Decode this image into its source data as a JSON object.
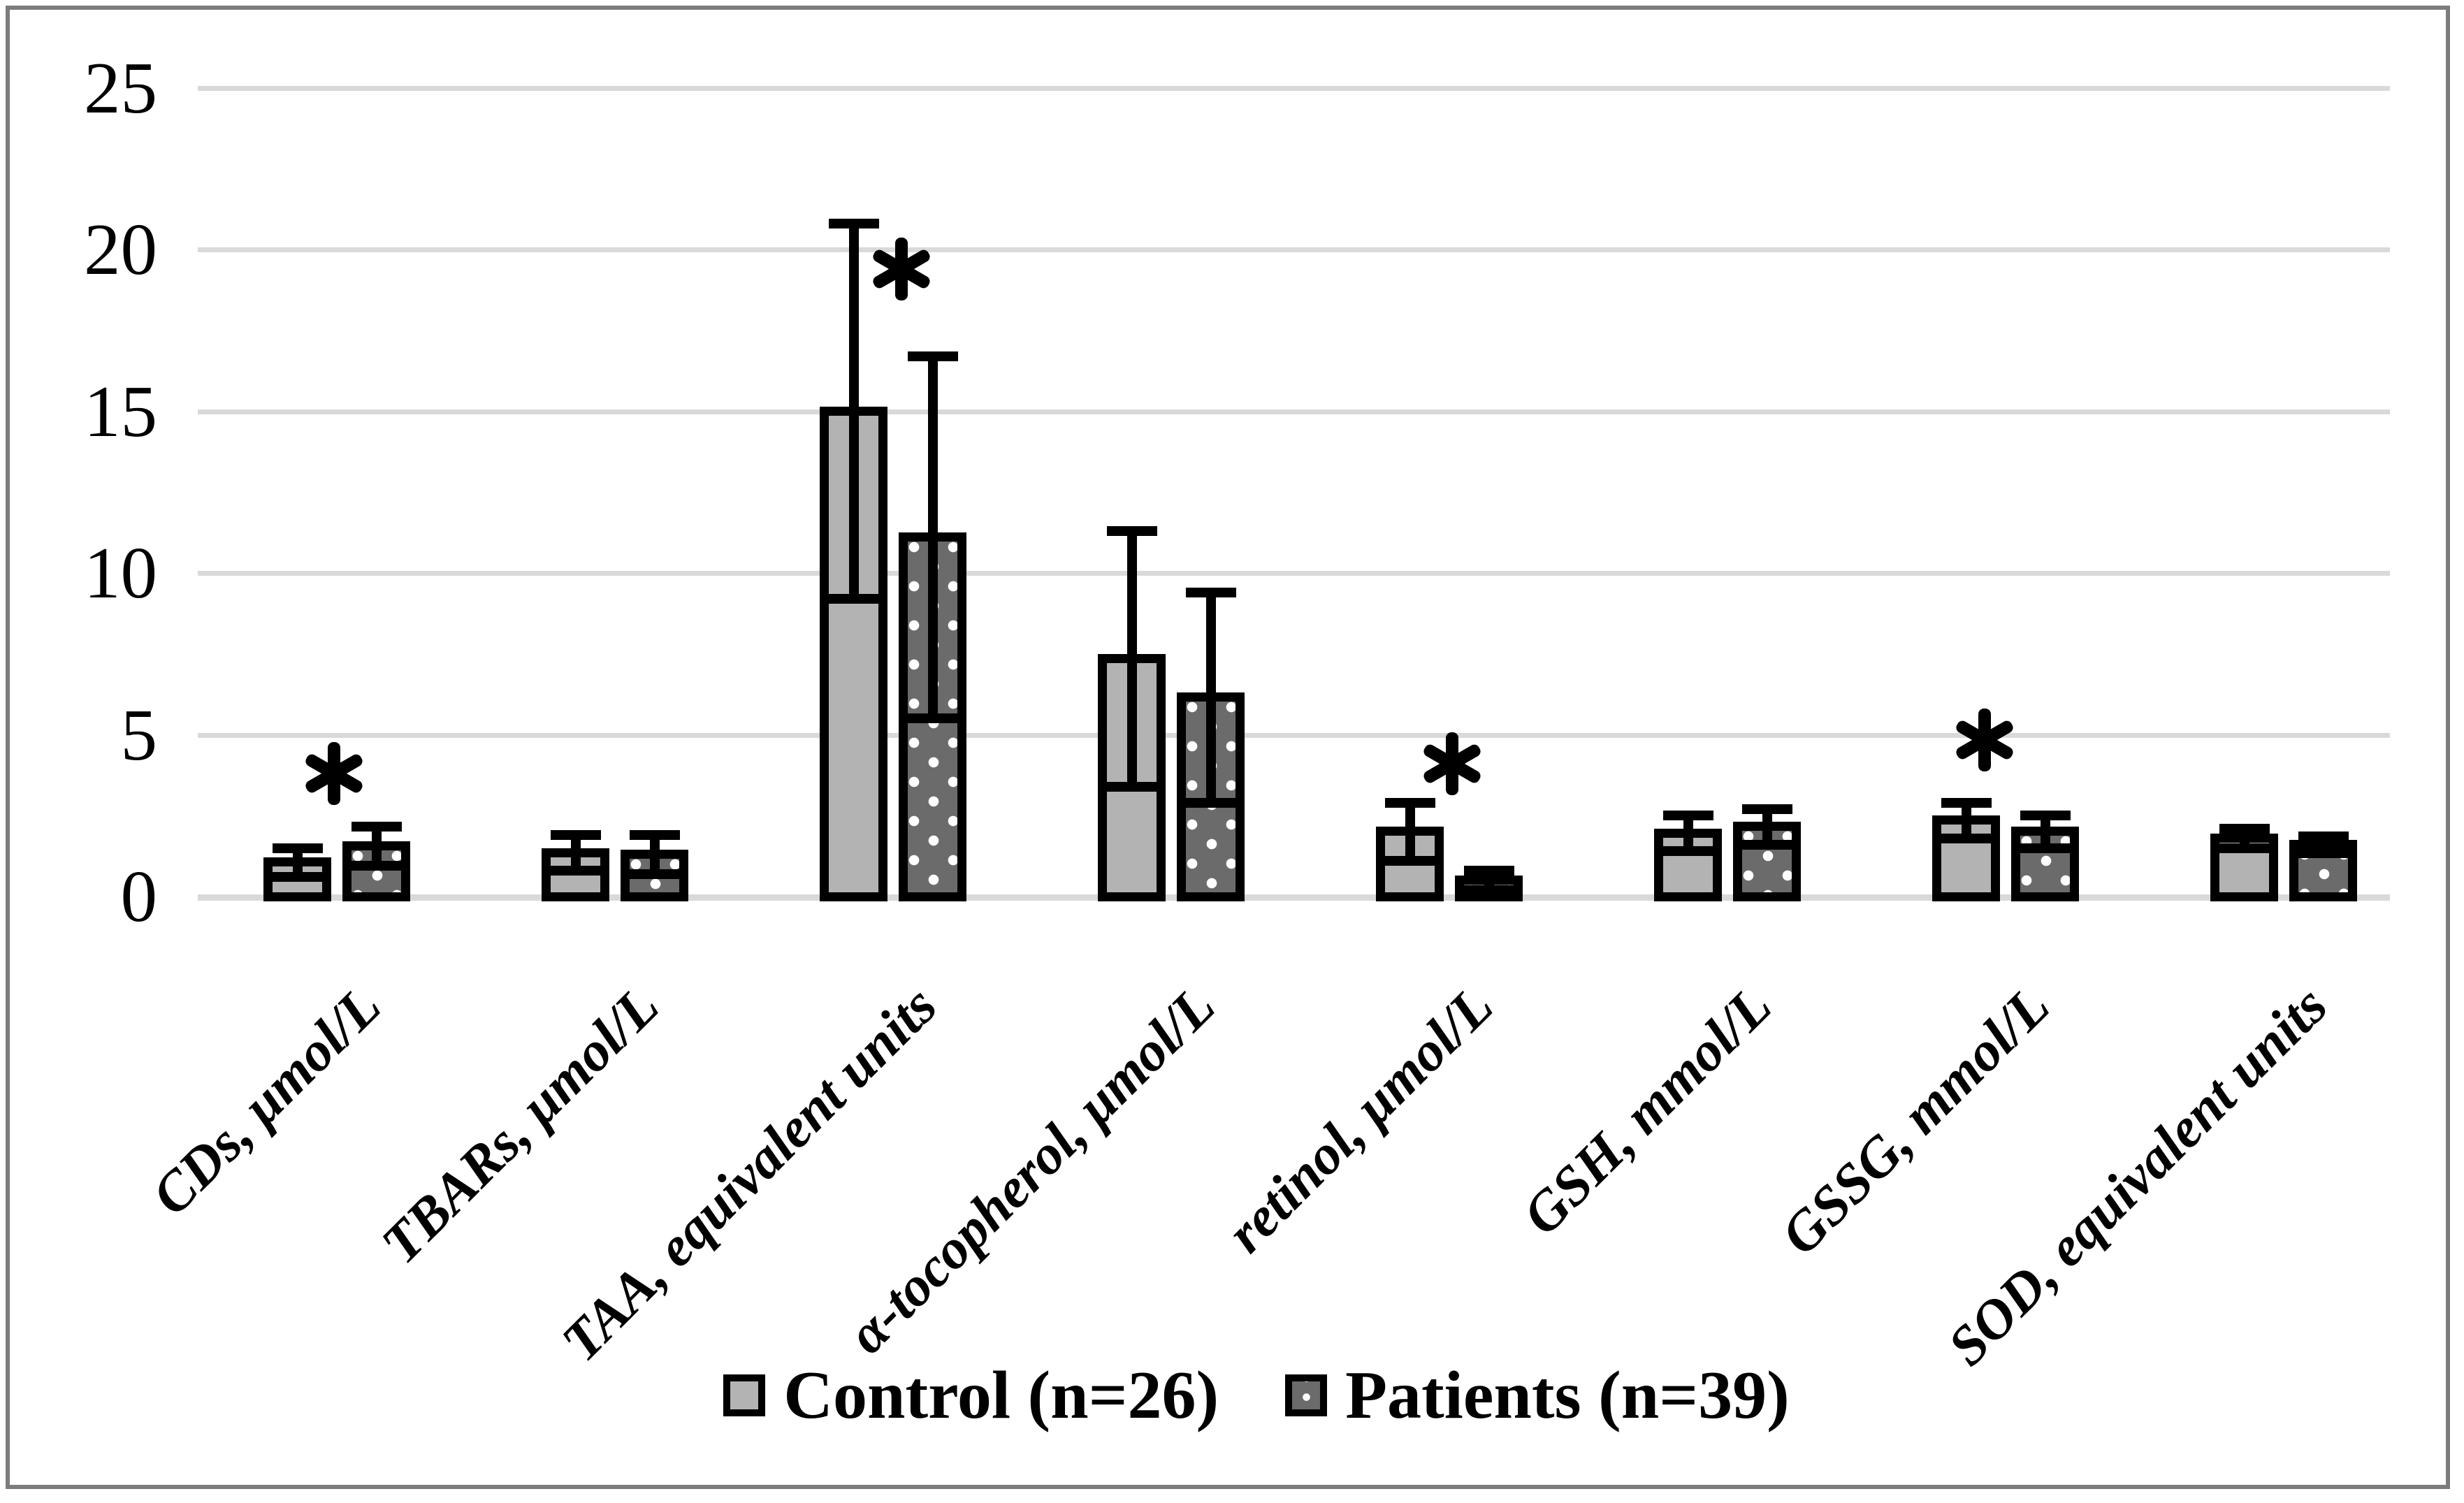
{
  "figure": {
    "background": "#ffffff",
    "frame_color": "#7c7c7c"
  },
  "colors": {
    "control_fill": "#b3b3b3",
    "patients_fill": "#6b6b6b",
    "patients_dot": "#ffffff",
    "bar_border": "#000000",
    "error_bar": "#000000",
    "gridline": "#d9d9d9",
    "text": "#000000"
  },
  "y_axis": {
    "ticks": [
      0,
      5,
      10,
      15,
      20,
      25
    ],
    "min": 0,
    "max": 25
  },
  "legend": [
    {
      "label": "Control (n=26)",
      "swatch": "control"
    },
    {
      "label": "Patients (n=39)",
      "swatch": "patients"
    }
  ],
  "significance_symbol": "*",
  "chart_data": {
    "type": "bar",
    "title": "",
    "xlabel": "",
    "ylabel": "",
    "ylim": [
      0,
      25
    ],
    "grid": true,
    "legend_position": "bottom",
    "categories": [
      "CDs, μmol/L",
      "TBARs, μmol/L",
      "TAA, equivalent units",
      "α-tocopherol, μmol/L",
      "retinol, μmol/L",
      "GSH, mmol/L",
      "GSSG, mmol/L",
      "SOD, equivalent units"
    ],
    "series": [
      {
        "name": "Control (n=26)",
        "values": [
          1.05,
          1.35,
          15.0,
          7.35,
          2.0,
          1.95,
          2.35,
          1.8
        ],
        "errors": [
          0.45,
          0.55,
          5.8,
          3.95,
          0.9,
          0.55,
          0.55,
          0.3
        ]
      },
      {
        "name": "Patients (n=39)",
        "values": [
          1.55,
          1.3,
          11.1,
          6.15,
          0.5,
          2.15,
          2.0,
          1.6
        ],
        "errors": [
          0.6,
          0.6,
          5.6,
          3.25,
          0.3,
          0.55,
          0.5,
          0.25
        ]
      }
    ],
    "sig_markers": [
      {
        "category_index": 0,
        "y": 3.8,
        "dx": -4
      },
      {
        "category_index": 2,
        "y": 19.4,
        "dx": 12
      },
      {
        "category_index": 4,
        "y": 4.1,
        "dx": 4
      },
      {
        "category_index": 6,
        "y": 4.85,
        "dx": -30
      }
    ]
  }
}
